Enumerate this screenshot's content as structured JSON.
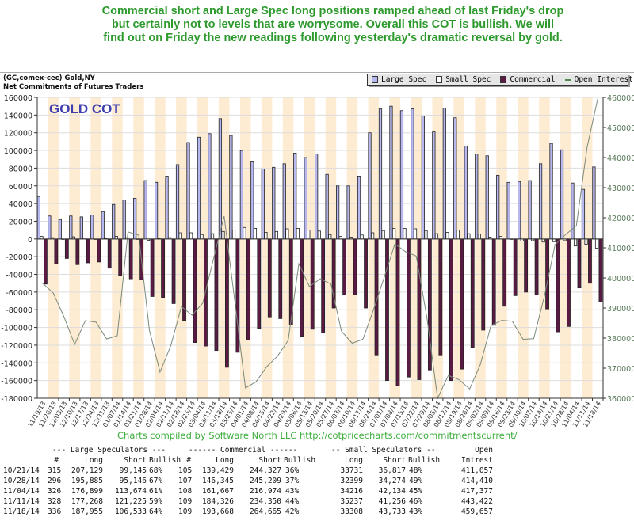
{
  "headline": [
    "Commercial short and Large Spec long positions ramped ahead of last Friday's drop",
    "but certainly not to levels that are worrysome. Overall this COT is bullish. We will",
    "find out on Friday the new readings following yesterday's dramatic reversal by gold."
  ],
  "subtitle": [
    "(GC,comex-cec) Gold,NY",
    "Net Commitments of Futures Traders"
  ],
  "credit": "Charts compiled by Software North LLC  http://cotpricecharts.com/commitmentscurrent/",
  "colors": {
    "headline": "#2e9a2e",
    "large_spec": "#b8b8f0",
    "small_spec": "#ffffff",
    "commercial": "#5a1a44",
    "open_interest": "#7a8a7a",
    "band": "#fdebd2",
    "chart_title": "#3d3db0",
    "right_axis": "#5a7a5a"
  },
  "chart_data": {
    "type": "bar",
    "title": "GOLD COT",
    "legend": {
      "placement": "top-right",
      "entries": [
        "Large Spec",
        "Small Spec",
        "Commercial",
        "Open Interest"
      ]
    },
    "ylim": [
      -180000,
      160000
    ],
    "y_ticks_step": 20000,
    "y2lim": [
      360000,
      460000
    ],
    "y2_ticks_step": 10000,
    "grid": true,
    "categories": [
      "11/19/13",
      "11/26/13",
      "12/03/13",
      "12/10/13",
      "12/17/13",
      "12/24/13",
      "12/31/13",
      "01/07/14",
      "01/14/14",
      "01/21/14",
      "01/28/14",
      "02/04/14",
      "02/11/14",
      "02/18/14",
      "02/25/14",
      "03/04/14",
      "03/11/14",
      "03/18/14",
      "03/25/14",
      "04/01/14",
      "04/08/14",
      "04/15/14",
      "04/22/14",
      "04/29/14",
      "05/06/14",
      "05/13/14",
      "05/20/14",
      "05/27/14",
      "06/03/14",
      "06/10/14",
      "06/17/14",
      "06/24/14",
      "07/01/14",
      "07/08/14",
      "07/15/14",
      "07/22/14",
      "07/29/14",
      "08/05/14",
      "08/12/14",
      "08/19/14",
      "08/26/14",
      "09/02/14",
      "09/09/14",
      "09/16/14",
      "09/23/14",
      "09/30/14",
      "10/07/14",
      "10/14/14",
      "10/21/14",
      "10/28/14",
      "11/04/14",
      "11/11/14",
      "11/18/14"
    ],
    "series": [
      {
        "name": "Large Spec",
        "type": "bar",
        "axis": "left",
        "values": [
          48000,
          26000,
          22000,
          26000,
          25000,
          27000,
          31000,
          39000,
          44000,
          46000,
          66000,
          64000,
          71000,
          84000,
          109000,
          115000,
          119000,
          136000,
          117000,
          100000,
          88000,
          79000,
          81000,
          85000,
          97000,
          92000,
          96000,
          73000,
          60000,
          60000,
          71000,
          120000,
          147000,
          150000,
          145000,
          147000,
          139000,
          121000,
          148000,
          137000,
          105000,
          96000,
          94000,
          72000,
          64000,
          65000,
          66000,
          85000,
          107984,
          100739,
          63225,
          56043,
          81422
        ]
      },
      {
        "name": "Small Spec",
        "type": "bar",
        "axis": "left",
        "values": [
          3000,
          1500,
          0,
          2500,
          1000,
          -500,
          500,
          3000,
          1500,
          -500,
          -1500,
          500,
          1500,
          7000,
          7000,
          5000,
          6000,
          8500,
          10000,
          13000,
          12000,
          7500,
          8500,
          11500,
          12000,
          10000,
          9000,
          5000,
          3000,
          2000,
          4500,
          7000,
          9500,
          12000,
          12000,
          11500,
          9500,
          6000,
          7500,
          10000,
          6000,
          5500,
          2000,
          3000,
          0,
          -2500,
          -2000,
          -3500,
          -3086,
          -1875,
          -7918,
          -6019,
          -10425
        ]
      },
      {
        "name": "Commercial",
        "type": "bar",
        "axis": "left",
        "values": [
          -51000,
          -28000,
          -22000,
          -29000,
          -27000,
          -26000,
          -33000,
          -41000,
          -45000,
          -46000,
          -65000,
          -66000,
          -73000,
          -92000,
          -117000,
          -121000,
          -126000,
          -145000,
          -128000,
          -114000,
          -101000,
          -88000,
          -90000,
          -97000,
          -110000,
          -102000,
          -106000,
          -78000,
          -63000,
          -63000,
          -78000,
          -131000,
          -160000,
          -166000,
          -156000,
          -159000,
          -148000,
          -131000,
          -160000,
          -147000,
          -123000,
          -103000,
          -97500,
          -76000,
          -64000,
          -60000,
          -63000,
          -79000,
          -104898,
          -98864,
          -55307,
          -50024,
          -70997
        ]
      },
      {
        "name": "Open Interest",
        "type": "line",
        "axis": "right",
        "values": [
          398200,
          395000,
          387100,
          377900,
          385800,
          385300,
          379700,
          380800,
          415300,
          414200,
          382600,
          368700,
          377400,
          390500,
          387600,
          391600,
          406300,
          420500,
          392400,
          363400,
          365500,
          370500,
          374000,
          379200,
          404700,
          397100,
          399700,
          398000,
          382300,
          378300,
          379600,
          389500,
          400200,
          411300,
          408700,
          407300,
          386800,
          360000,
          367600,
          366200,
          363100,
          371200,
          384100,
          385900,
          385600,
          379600,
          379800,
          393900,
          411057,
          414410,
          417377,
          443422,
          459657
        ]
      }
    ]
  },
  "table": {
    "group_headers": [
      "--- Large Speculators ---",
      "------ Commercial ------",
      "-- Small Speculators --",
      "Open"
    ],
    "columns": [
      "#",
      "Long",
      "Short",
      "Bullish",
      "#",
      "Long",
      "Short",
      "Bullish",
      "Long",
      "Short",
      "Bullish",
      "Intrest"
    ],
    "rows": [
      [
        "10/21/14",
        "315",
        "207,129",
        "99,145",
        "68%",
        "105",
        "139,429",
        "244,327",
        "36%",
        "33731",
        "36,817",
        "48%",
        "411,057"
      ],
      [
        "10/28/14",
        "296",
        "195,885",
        "95,146",
        "67%",
        "107",
        "146,345",
        "245,209",
        "37%",
        "32399",
        "34,274",
        "49%",
        "414,410"
      ],
      [
        "11/04/14",
        "326",
        "176,899",
        "113,674",
        "61%",
        "108",
        "161,667",
        "216,974",
        "43%",
        "34216",
        "42,134",
        "45%",
        "417,377"
      ],
      [
        "11/11/14",
        "328",
        "177,268",
        "121,225",
        "59%",
        "109",
        "184,326",
        "234,350",
        "44%",
        "35237",
        "41,256",
        "46%",
        "443,422"
      ],
      [
        "11/18/14",
        "336",
        "187,955",
        "106,533",
        "64%",
        "109",
        "193,668",
        "264,665",
        "42%",
        "33308",
        "43,733",
        "43%",
        "459,657"
      ]
    ]
  }
}
